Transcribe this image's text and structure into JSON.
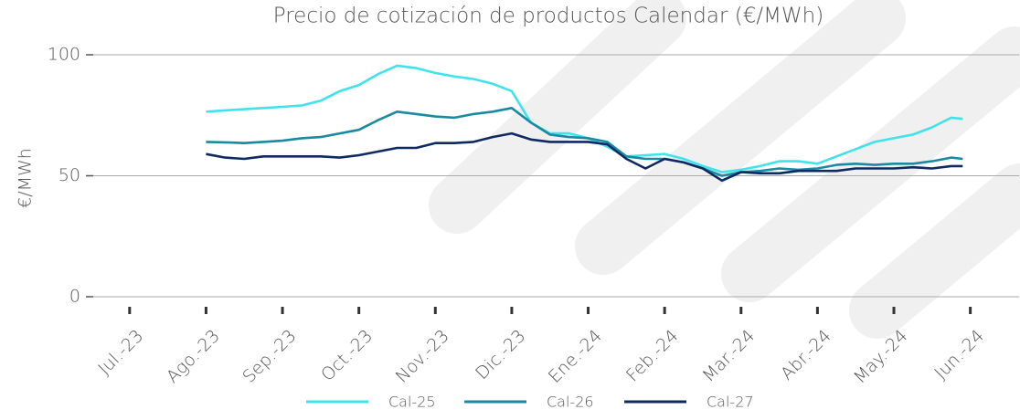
{
  "chart_data": {
    "type": "line",
    "title": "Precio de cotización de productos Calendar (€/MWh)",
    "ylabel": "€/MWh",
    "x": [
      1,
      1.25,
      1.5,
      1.75,
      2,
      2.25,
      2.5,
      2.75,
      3,
      3.25,
      3.5,
      3.75,
      4,
      4.25,
      4.5,
      4.75,
      5,
      5.25,
      5.5,
      5.75,
      6,
      6.25,
      6.5,
      6.75,
      7,
      7.25,
      7.5,
      7.75,
      8,
      8.25,
      8.5,
      8.75,
      9,
      9.25,
      9.5,
      9.75,
      10,
      10.25,
      10.5,
      10.75,
      10.9
    ],
    "series": [
      {
        "name": "Cal-25",
        "color": "#3fe3ec",
        "values": [
          76.5,
          77,
          77.5,
          78,
          78.5,
          79,
          81,
          85,
          87.5,
          92,
          95.5,
          94.5,
          92.5,
          91,
          90,
          88,
          85,
          72,
          67.5,
          67.5,
          65.5,
          62,
          58,
          58.5,
          59,
          57,
          54,
          51.5,
          52.5,
          54,
          56,
          56,
          55,
          58,
          61,
          64,
          65.5,
          67,
          70,
          74,
          73.5
        ]
      },
      {
        "name": "Cal-26",
        "color": "#1a8aa3",
        "values": [
          64,
          63.8,
          63.5,
          64,
          64.5,
          65.5,
          66,
          67.5,
          69,
          73,
          76.5,
          75.5,
          74.5,
          74,
          75.5,
          76.5,
          78,
          72,
          67,
          66,
          65.5,
          64,
          58,
          57,
          57,
          55.5,
          53,
          50,
          51.5,
          52,
          53,
          52.5,
          53,
          54.5,
          55,
          54.5,
          55,
          55,
          56,
          57.5,
          57
        ]
      },
      {
        "name": "Cal-27",
        "color": "#0e2a63",
        "values": [
          59,
          57.5,
          57,
          58,
          58,
          58,
          58,
          57.5,
          58.5,
          60,
          61.5,
          61.5,
          63.5,
          63.5,
          64,
          66,
          67.5,
          65,
          64,
          64,
          64,
          63,
          57,
          53,
          57,
          55.5,
          53,
          48,
          51.5,
          51,
          51,
          52,
          52,
          52,
          53,
          53,
          53,
          53.5,
          53,
          54,
          54
        ]
      }
    ],
    "xlim": [
      -0.5,
      11.1
    ],
    "xticks": [
      {
        "value": 0,
        "label": "Jul.-23"
      },
      {
        "value": 1,
        "label": "Ago.-23"
      },
      {
        "value": 2,
        "label": "Sep.-23"
      },
      {
        "value": 3,
        "label": "Oct.-23"
      },
      {
        "value": 4,
        "label": "Nov.-23"
      },
      {
        "value": 5,
        "label": "Dic.-23"
      },
      {
        "value": 6,
        "label": "Ene.-24"
      },
      {
        "value": 7,
        "label": "Feb.-24"
      },
      {
        "value": 8,
        "label": "Mar.-24"
      },
      {
        "value": 9,
        "label": "Abr.-24"
      },
      {
        "value": 10,
        "label": "May.-24"
      },
      {
        "value": 11,
        "label": "Jun.-24"
      }
    ],
    "ylim": [
      0,
      100
    ],
    "yticks": [
      0,
      50,
      100
    ],
    "grid": true,
    "legend": "bottom"
  }
}
